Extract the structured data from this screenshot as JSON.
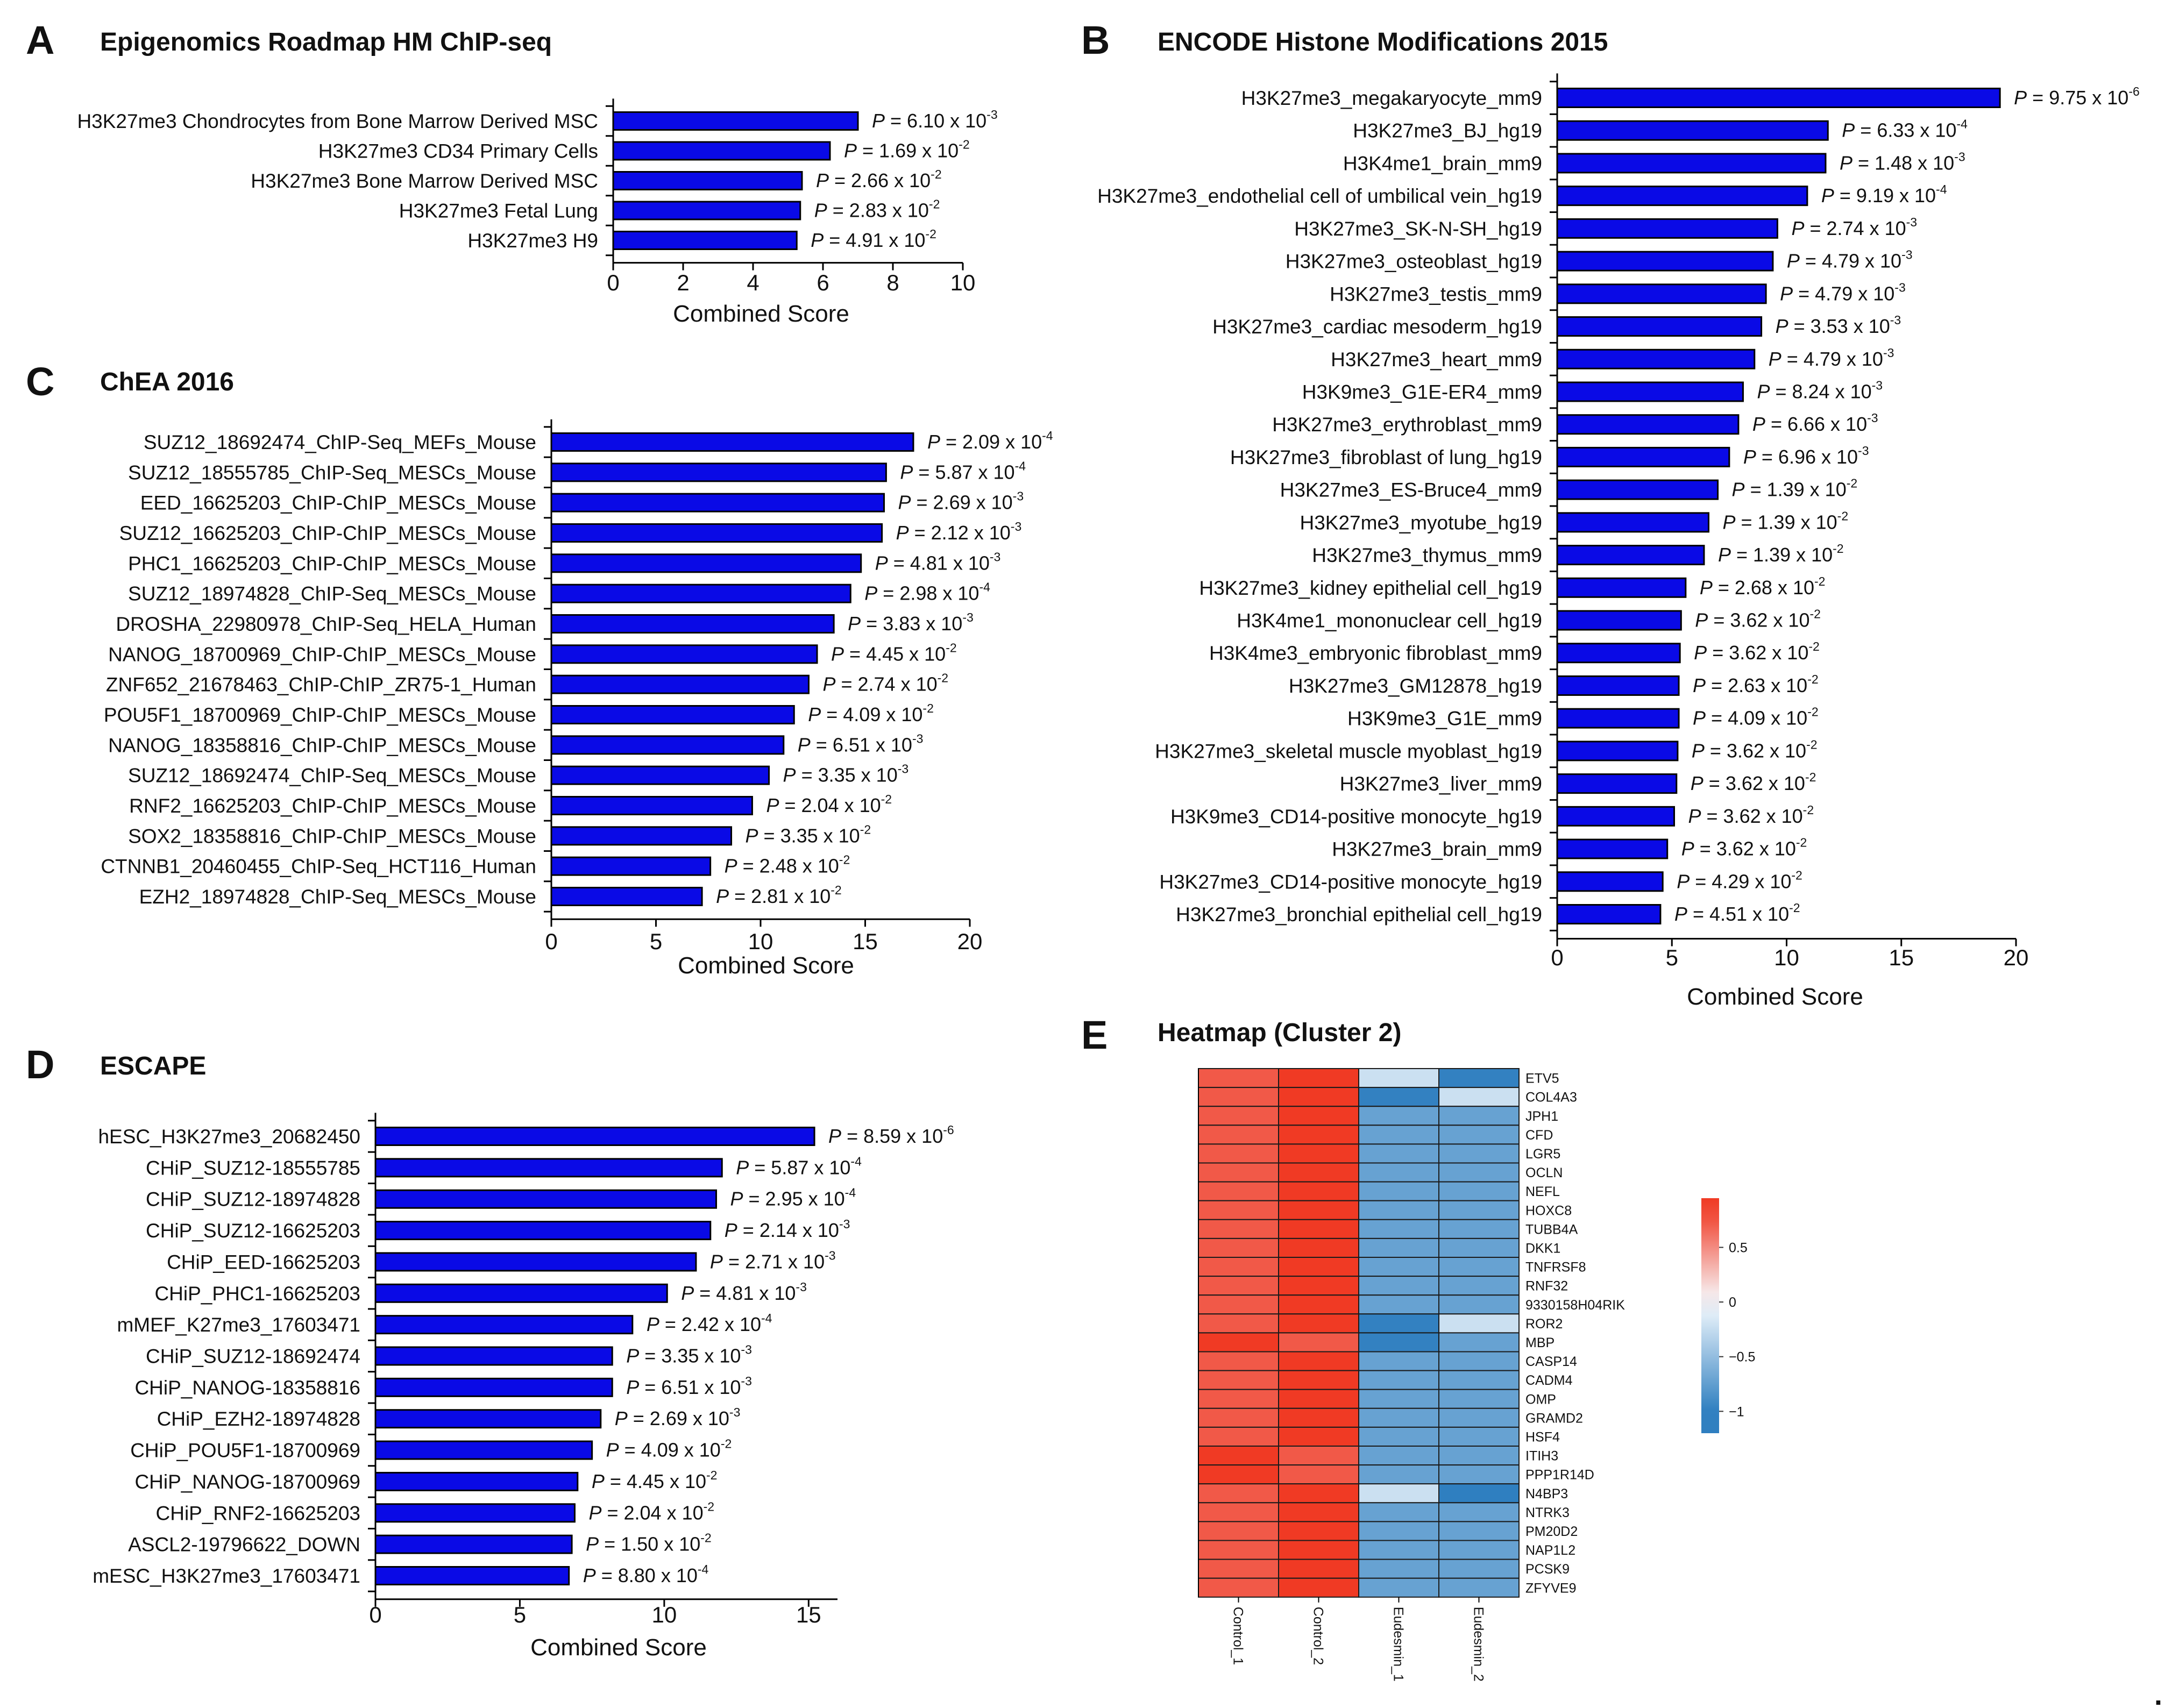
{
  "colors": {
    "bar": "#0a0ae6",
    "bar_stroke": "#000000",
    "heat_high": "#f03a24",
    "heat_mid": "#f7fbff",
    "heat_low": "#2f7fc0"
  },
  "panels": {
    "A": {
      "letter": "A",
      "title": "Epigenomics Roadmap HM ChIP-seq"
    },
    "B": {
      "letter": "B",
      "title": "ENCODE Histone Modifications 2015"
    },
    "C": {
      "letter": "C",
      "title": "ChEA 2016"
    },
    "D": {
      "letter": "D",
      "title": "ESCAPE"
    },
    "E": {
      "letter": "E",
      "title": "Heatmap (Cluster 2)"
    }
  },
  "trailing_mark": ".",
  "chart_data": [
    {
      "id": "A",
      "type": "bar",
      "orientation": "horizontal",
      "title": "Epigenomics Roadmap HM ChIP-seq",
      "xlabel": "Combined Score",
      "xlim": [
        0,
        10
      ],
      "xticks": [
        0,
        2,
        4,
        6,
        8,
        10
      ],
      "categories": [
        "H3K27me3 Chondrocytes from Bone Marrow Derived MSC",
        "H3K27me3 CD34 Primary Cells",
        "H3K27me3 Bone Marrow Derived MSC",
        "H3K27me3 Fetal Lung",
        "H3K27me3 H9"
      ],
      "values": [
        7.0,
        6.2,
        5.4,
        5.35,
        5.25
      ],
      "pvalues": [
        {
          "label": "P",
          "eq": " = ",
          "mant": "6.10",
          "x": " x 10",
          "exp": "-3"
        },
        {
          "label": "P",
          "eq": " = ",
          "mant": "1.69",
          "x": " x 10",
          "exp": "-2"
        },
        {
          "label": "P",
          "eq": " = ",
          "mant": "2.66",
          "x": " x 10",
          "exp": "-2"
        },
        {
          "label": "P",
          "eq": " = ",
          "mant": "2.83",
          "x": " x 10",
          "exp": "-2"
        },
        {
          "label": "P",
          "eq": " = ",
          "mant": "4.91",
          "x": " x 10",
          "exp": "-2"
        }
      ]
    },
    {
      "id": "B",
      "type": "bar",
      "orientation": "horizontal",
      "title": "ENCODE Histone Modifications 2015",
      "xlabel": "Combined Score",
      "xlim": [
        0,
        20
      ],
      "xticks": [
        0,
        5,
        10,
        15,
        20
      ],
      "categories": [
        "H3K27me3_megakaryocyte_mm9",
        "H3K27me3_BJ_hg19",
        "H3K4me1_brain_mm9",
        "H3K27me3_endothelial cell of umbilical vein_hg19",
        "H3K27me3_SK-N-SH_hg19",
        "H3K27me3_osteoblast_hg19",
        "H3K27me3_testis_mm9",
        "H3K27me3_cardiac mesoderm_hg19",
        "H3K27me3_heart_mm9",
        "H3K9me3_G1E-ER4_mm9",
        "H3K27me3_erythroblast_mm9",
        "H3K27me3_fibroblast of lung_hg19",
        "H3K27me3_ES-Bruce4_mm9",
        "H3K27me3_myotube_hg19",
        "H3K27me3_thymus_mm9",
        "H3K27me3_kidney epithelial cell_hg19",
        "H3K4me1_mononuclear cell_hg19",
        "H3K4me3_embryonic fibroblast_mm9",
        "H3K27me3_GM12878_hg19",
        "H3K9me3_G1E_mm9",
        "H3K27me3_skeletal muscle myoblast_hg19",
        "H3K27me3_liver_mm9",
        "H3K9me3_CD14-positive monocyte_hg19",
        "H3K27me3_brain_mm9",
        "H3K27me3_CD14-positive monocyte_hg19",
        "H3K27me3_bronchial epithelial cell_hg19"
      ],
      "values": [
        19.3,
        11.8,
        11.7,
        10.9,
        9.6,
        9.4,
        9.1,
        8.9,
        8.6,
        8.1,
        7.9,
        7.5,
        7.0,
        6.6,
        6.4,
        5.6,
        5.4,
        5.35,
        5.3,
        5.3,
        5.25,
        5.2,
        5.1,
        4.8,
        4.6,
        4.5
      ],
      "pvalues": [
        {
          "label": "P",
          "eq": " = ",
          "mant": "9.75",
          "x": " x 10",
          "exp": "-6"
        },
        {
          "label": "P",
          "eq": " = ",
          "mant": "6.33",
          "x": " x 10",
          "exp": "-4"
        },
        {
          "label": "P",
          "eq": " = ",
          "mant": "1.48",
          "x": " x 10",
          "exp": "-3"
        },
        {
          "label": "P",
          "eq": " = ",
          "mant": "9.19",
          "x": " x 10",
          "exp": "-4"
        },
        {
          "label": "P",
          "eq": " = ",
          "mant": "2.74",
          "x": " x 10",
          "exp": "-3"
        },
        {
          "label": "P",
          "eq": " = ",
          "mant": "4.79",
          "x": " x 10",
          "exp": "-3"
        },
        {
          "label": "P",
          "eq": " = ",
          "mant": "4.79",
          "x": " x 10",
          "exp": "-3"
        },
        {
          "label": "P",
          "eq": " = ",
          "mant": "3.53",
          "x": " x 10",
          "exp": "-3"
        },
        {
          "label": "P",
          "eq": " = ",
          "mant": "4.79",
          "x": " x 10",
          "exp": "-3"
        },
        {
          "label": "P",
          "eq": " = ",
          "mant": "8.24",
          "x": " x 10",
          "exp": "-3"
        },
        {
          "label": "P",
          "eq": " = ",
          "mant": "6.66",
          "x": " x 10",
          "exp": "-3"
        },
        {
          "label": "P",
          "eq": " = ",
          "mant": "6.96",
          "x": " x 10",
          "exp": "-3"
        },
        {
          "label": "P",
          "eq": " = ",
          "mant": "1.39",
          "x": " x 10",
          "exp": "-2"
        },
        {
          "label": "P",
          "eq": " = ",
          "mant": "1.39",
          "x": " x 10",
          "exp": "-2"
        },
        {
          "label": "P",
          "eq": " = ",
          "mant": "1.39",
          "x": " x 10",
          "exp": "-2"
        },
        {
          "label": "P",
          "eq": " = ",
          "mant": "2.68",
          "x": " x 10",
          "exp": "-2"
        },
        {
          "label": "P",
          "eq": " = ",
          "mant": "3.62",
          "x": " x 10",
          "exp": "-2"
        },
        {
          "label": "P",
          "eq": " = ",
          "mant": "3.62",
          "x": " x 10",
          "exp": "-2"
        },
        {
          "label": "P",
          "eq": " = ",
          "mant": "2.63",
          "x": " x 10",
          "exp": "-2"
        },
        {
          "label": "P",
          "eq": " = ",
          "mant": "4.09",
          "x": " x 10",
          "exp": "-2"
        },
        {
          "label": "P",
          "eq": " = ",
          "mant": "3.62",
          "x": " x 10",
          "exp": "-2"
        },
        {
          "label": "P",
          "eq": " = ",
          "mant": "3.62",
          "x": " x 10",
          "exp": "-2"
        },
        {
          "label": "P",
          "eq": " = ",
          "mant": "3.62",
          "x": " x 10",
          "exp": "-2"
        },
        {
          "label": "P",
          "eq": " = ",
          "mant": "3.62",
          "x": " x 10",
          "exp": "-2"
        },
        {
          "label": "P",
          "eq": " = ",
          "mant": "4.29",
          "x": " x 10",
          "exp": "-2"
        },
        {
          "label": "P",
          "eq": " = ",
          "mant": "4.51",
          "x": " x 10",
          "exp": "-2"
        }
      ]
    },
    {
      "id": "C",
      "type": "bar",
      "orientation": "horizontal",
      "title": "ChEA 2016",
      "xlabel": "Combined Score",
      "xlim": [
        0,
        20
      ],
      "xticks": [
        0,
        5,
        10,
        15,
        20
      ],
      "categories": [
        "SUZ12_18692474_ChIP-Seq_MEFs_Mouse",
        "SUZ12_18555785_ChIP-Seq_MESCs_Mouse",
        "EED_16625203_ChIP-ChIP_MESCs_Mouse",
        "SUZ12_16625203_ChIP-ChIP_MESCs_Mouse",
        "PHC1_16625203_ChIP-ChIP_MESCs_Mouse",
        "SUZ12_18974828_ChIP-Seq_MESCs_Mouse",
        "DROSHA_22980978_ChIP-Seq_HELA_Human",
        "NANOG_18700969_ChIP-ChIP_MESCs_Mouse",
        "ZNF652_21678463_ChIP-ChIP_ZR75-1_Human",
        "POU5F1_18700969_ChIP-ChIP_MESCs_Mouse",
        "NANOG_18358816_ChIP-ChIP_MESCs_Mouse",
        "SUZ12_18692474_ChIP-Seq_MESCs_Mouse",
        "RNF2_16625203_ChIP-ChIP_MESCs_Mouse",
        "SOX2_18358816_ChIP-ChIP_MESCs_Mouse",
        "CTNNB1_20460455_ChIP-Seq_HCT116_Human",
        "EZH2_18974828_ChIP-Seq_MESCs_Mouse"
      ],
      "values": [
        17.3,
        16.0,
        15.9,
        15.8,
        14.8,
        14.3,
        13.5,
        12.7,
        12.3,
        11.6,
        11.1,
        10.4,
        9.6,
        8.6,
        7.6,
        7.2
      ],
      "pvalues": [
        {
          "label": "P",
          "eq": " = ",
          "mant": "2.09",
          "x": " x 10",
          "exp": "-4"
        },
        {
          "label": "P",
          "eq": " = ",
          "mant": "5.87",
          "x": " x 10",
          "exp": "-4"
        },
        {
          "label": "P",
          "eq": " = ",
          "mant": "2.69",
          "x": " x 10",
          "exp": "-3"
        },
        {
          "label": "P",
          "eq": " = ",
          "mant": "2.12",
          "x": " x 10",
          "exp": "-3"
        },
        {
          "label": "P",
          "eq": " = ",
          "mant": "4.81",
          "x": " x 10",
          "exp": "-3"
        },
        {
          "label": "P",
          "eq": " = ",
          "mant": "2.98",
          "x": " x 10",
          "exp": "-4"
        },
        {
          "label": "P",
          "eq": " = ",
          "mant": "3.83",
          "x": " x 10",
          "exp": "-3"
        },
        {
          "label": "P",
          "eq": " = ",
          "mant": "4.45",
          "x": " x 10",
          "exp": "-2"
        },
        {
          "label": "P",
          "eq": " = ",
          "mant": "2.74",
          "x": " x 10",
          "exp": "-2"
        },
        {
          "label": "P",
          "eq": " = ",
          "mant": "4.09",
          "x": " x 10",
          "exp": "-2"
        },
        {
          "label": "P",
          "eq": " = ",
          "mant": "6.51",
          "x": " x 10",
          "exp": "-3"
        },
        {
          "label": "P",
          "eq": " = ",
          "mant": "3.35",
          "x": " x 10",
          "exp": "-3"
        },
        {
          "label": "P",
          "eq": " = ",
          "mant": "2.04",
          "x": " x 10",
          "exp": "-2"
        },
        {
          "label": "P",
          "eq": " = ",
          "mant": "3.35",
          "x": " x 10",
          "exp": "-2"
        },
        {
          "label": "P",
          "eq": " = ",
          "mant": "2.48",
          "x": " x 10",
          "exp": "-2"
        },
        {
          "label": "P",
          "eq": " = ",
          "mant": "2.81",
          "x": " x 10",
          "exp": "-2"
        }
      ]
    },
    {
      "id": "D",
      "type": "bar",
      "orientation": "horizontal",
      "title": "ESCAPE",
      "xlabel": "Combined Score",
      "xlim": [
        0,
        16
      ],
      "xticks": [
        0,
        5,
        10,
        15
      ],
      "categories": [
        "hESC_H3K27me3_20682450",
        "CHiP_SUZ12-18555785",
        "CHiP_SUZ12-18974828",
        "CHiP_SUZ12-16625203",
        "CHiP_EED-16625203",
        "CHiP_PHC1-16625203",
        "mMEF_K27me3_17603471",
        "CHiP_SUZ12-18692474",
        "CHiP_NANOG-18358816",
        "CHiP_EZH2-18974828",
        "CHiP_POU5F1-18700969",
        "CHiP_NANOG-18700969",
        "CHiP_RNF2-16625203",
        "ASCL2-19796622_DOWN",
        "mESC_H3K27me3_17603471"
      ],
      "values": [
        15.2,
        12.0,
        11.8,
        11.6,
        11.1,
        10.1,
        8.9,
        8.2,
        8.2,
        7.8,
        7.5,
        7.0,
        6.9,
        6.8,
        6.7
      ],
      "pvalues": [
        {
          "label": "P",
          "eq": " = ",
          "mant": "8.59",
          "x": " x 10",
          "exp": "-6"
        },
        {
          "label": "P",
          "eq": " = ",
          "mant": "5.87",
          "x": " x 10",
          "exp": "-4"
        },
        {
          "label": "P",
          "eq": " = ",
          "mant": "2.95",
          "x": " x 10",
          "exp": "-4"
        },
        {
          "label": "P",
          "eq": " = ",
          "mant": "2.14",
          "x": " x 10",
          "exp": "-3"
        },
        {
          "label": "P",
          "eq": " = ",
          "mant": "2.71",
          "x": " x 10",
          "exp": "-3"
        },
        {
          "label": "P",
          "eq": " = ",
          "mant": "4.81",
          "x": " x 10",
          "exp": "-3"
        },
        {
          "label": "P",
          "eq": " = ",
          "mant": "2.42",
          "x": " x 10",
          "exp": "-4"
        },
        {
          "label": "P",
          "eq": " = ",
          "mant": "3.35",
          "x": " x 10",
          "exp": "-3"
        },
        {
          "label": "P",
          "eq": " = ",
          "mant": "6.51",
          "x": " x 10",
          "exp": "-3"
        },
        {
          "label": "P",
          "eq": " = ",
          "mant": "2.69",
          "x": " x 10",
          "exp": "-3"
        },
        {
          "label": "P",
          "eq": " = ",
          "mant": "4.09",
          "x": " x 10",
          "exp": "-2"
        },
        {
          "label": "P",
          "eq": " = ",
          "mant": "4.45",
          "x": " x 10",
          "exp": "-2"
        },
        {
          "label": "P",
          "eq": " = ",
          "mant": "2.04",
          "x": " x 10",
          "exp": "-2"
        },
        {
          "label": "P",
          "eq": " = ",
          "mant": "1.50",
          "x": " x 10",
          "exp": "-2"
        },
        {
          "label": "P",
          "eq": " = ",
          "mant": "8.80",
          "x": " x 10",
          "exp": "-4"
        }
      ]
    },
    {
      "id": "E",
      "type": "heatmap",
      "title": "Heatmap (Cluster 2)",
      "columns": [
        "Control_1",
        "Control_2",
        "Eudesmin_1",
        "Eudesmin_2"
      ],
      "rows": [
        "ETV5",
        "COL4A3",
        "JPH1",
        "CFD",
        "LGR5",
        "OCLN",
        "NEFL",
        "HOXC8",
        "TUBB4A",
        "DKK1",
        "TNFRSF8",
        "RNF32",
        "9330158H04RIK",
        "ROR2",
        "MBP",
        "CASP14",
        "CADM4",
        "OMP",
        "GRAMD2",
        "HSF4",
        "ITIH3",
        "PPP1R14D",
        "N4BP3",
        "NTRK3",
        "PM20D2",
        "NAP1L2",
        "PCSK9",
        "ZFYVE9"
      ],
      "values": [
        [
          0.72,
          0.86,
          -0.22,
          -0.98
        ],
        [
          0.72,
          0.86,
          -0.98,
          -0.22
        ],
        [
          0.72,
          0.86,
          -0.72,
          -0.72
        ],
        [
          0.72,
          0.86,
          -0.72,
          -0.72
        ],
        [
          0.72,
          0.86,
          -0.72,
          -0.72
        ],
        [
          0.72,
          0.86,
          -0.72,
          -0.72
        ],
        [
          0.72,
          0.86,
          -0.72,
          -0.72
        ],
        [
          0.72,
          0.86,
          -0.72,
          -0.72
        ],
        [
          0.72,
          0.86,
          -0.72,
          -0.72
        ],
        [
          0.72,
          0.86,
          -0.72,
          -0.72
        ],
        [
          0.72,
          0.86,
          -0.72,
          -0.72
        ],
        [
          0.72,
          0.86,
          -0.72,
          -0.72
        ],
        [
          0.72,
          0.86,
          -0.72,
          -0.72
        ],
        [
          0.72,
          0.86,
          -0.98,
          -0.22
        ],
        [
          0.86,
          0.72,
          -0.98,
          -0.72
        ],
        [
          0.72,
          0.86,
          -0.72,
          -0.72
        ],
        [
          0.72,
          0.86,
          -0.72,
          -0.72
        ],
        [
          0.72,
          0.86,
          -0.72,
          -0.72
        ],
        [
          0.72,
          0.86,
          -0.72,
          -0.72
        ],
        [
          0.72,
          0.86,
          -0.72,
          -0.72
        ],
        [
          0.86,
          0.72,
          -0.72,
          -0.72
        ],
        [
          0.86,
          0.72,
          -0.72,
          -0.72
        ],
        [
          0.72,
          0.86,
          -0.22,
          -1.15
        ],
        [
          0.72,
          0.86,
          -0.72,
          -0.72
        ],
        [
          0.72,
          0.86,
          -0.72,
          -0.72
        ],
        [
          0.72,
          0.86,
          -0.72,
          -0.72
        ],
        [
          0.72,
          0.86,
          -0.72,
          -0.72
        ],
        [
          0.72,
          0.86,
          -0.72,
          -0.72
        ]
      ],
      "colorbar": {
        "range": [
          -1.2,
          0.95
        ],
        "ticks": [
          {
            "value": 0.5,
            "label": "0.5"
          },
          {
            "value": 0,
            "label": "0"
          },
          {
            "value": -0.5,
            "label": "−0.5"
          },
          {
            "value": -1,
            "label": "−1"
          }
        ]
      }
    }
  ]
}
